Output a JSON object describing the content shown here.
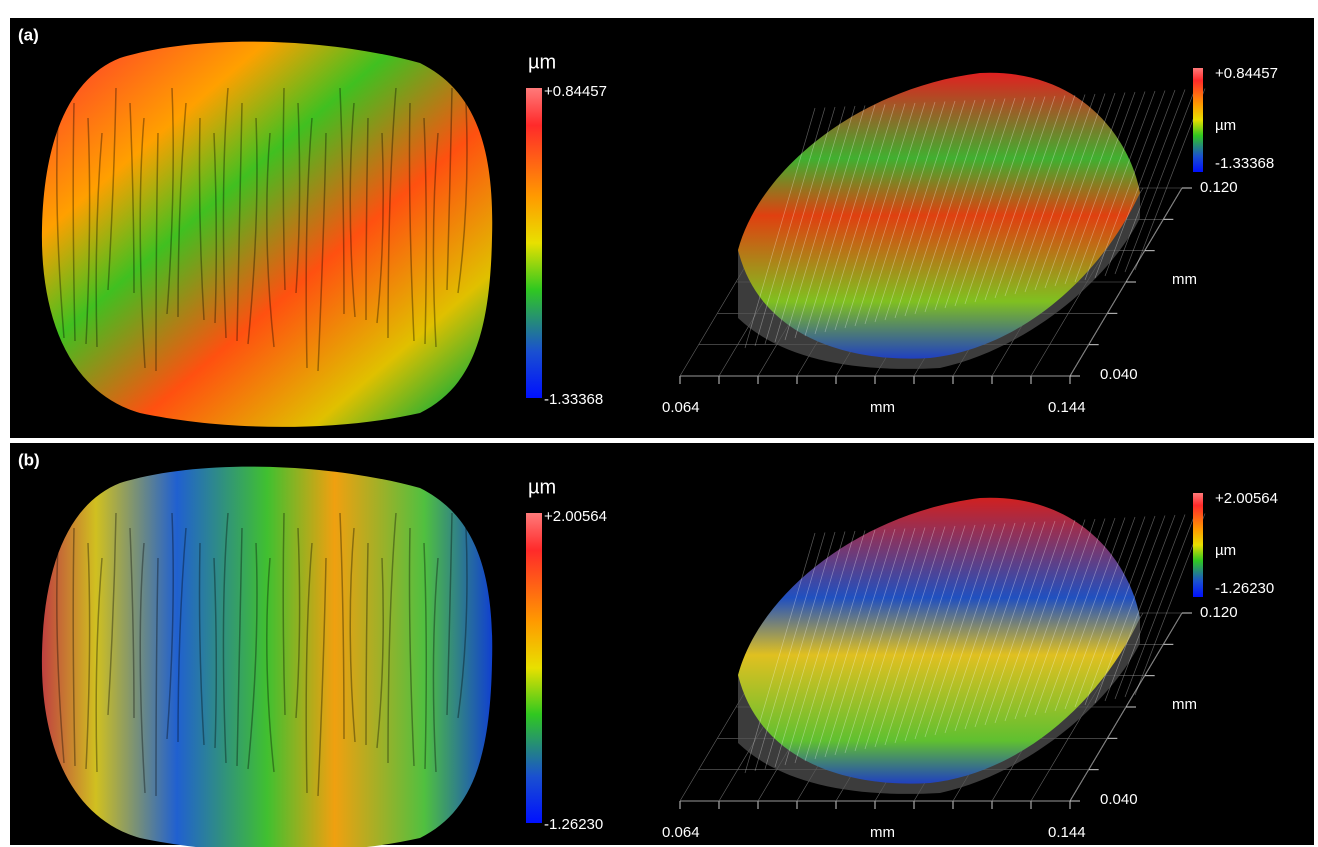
{
  "panels": [
    {
      "label": "(a)",
      "map_colorbar": {
        "unit": "µm",
        "max": "+0.84457",
        "min": "-1.33368"
      },
      "surface_colorbar": {
        "max": "+0.84457",
        "unit": "µm",
        "min": "-1.33368"
      },
      "x_axis": {
        "start": "0.064",
        "label": "mm",
        "end": "0.144"
      },
      "y_axis": {
        "start": "0.040",
        "label": "mm",
        "end": "0.120"
      }
    },
    {
      "label": "(b)",
      "map_colorbar": {
        "unit": "µm",
        "max": "+2.00564",
        "min": "-1.26230"
      },
      "surface_colorbar": {
        "max": "+2.00564",
        "unit": "µm",
        "min": "-1.26230"
      },
      "x_axis": {
        "start": "0.064",
        "label": "mm",
        "end": "0.144"
      },
      "y_axis": {
        "start": "0.040",
        "label": "mm",
        "end": "0.120"
      }
    }
  ]
}
